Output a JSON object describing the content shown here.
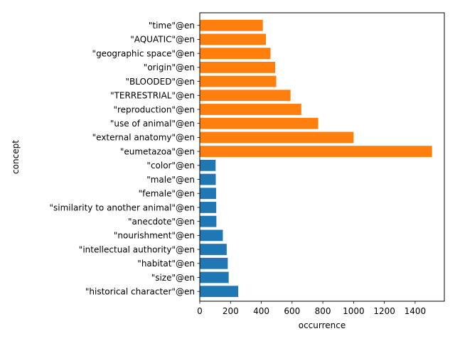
{
  "chart_data": {
    "type": "bar",
    "orientation": "horizontal",
    "title": "",
    "xlabel": "occurrence",
    "ylabel": "concept",
    "xlim": [
      0,
      1590
    ],
    "xticks": [
      0,
      200,
      400,
      600,
      800,
      1000,
      1200,
      1400
    ],
    "grid": false,
    "legend": "none",
    "colors": {
      "blue": "#1f77b4",
      "orange": "#ff7f0e"
    },
    "bars": [
      {
        "label": "\"historical character\"@en",
        "value": 250,
        "color": "#1f77b4"
      },
      {
        "label": "\"size\"@en",
        "value": 188,
        "color": "#1f77b4"
      },
      {
        "label": "\"habitat\"@en",
        "value": 182,
        "color": "#1f77b4"
      },
      {
        "label": "\"intellectual authority\"@en",
        "value": 175,
        "color": "#1f77b4"
      },
      {
        "label": "\"nourishment\"@en",
        "value": 150,
        "color": "#1f77b4"
      },
      {
        "label": "\"anecdote\"@en",
        "value": 108,
        "color": "#1f77b4"
      },
      {
        "label": "\"similarity to another animal\"@en",
        "value": 107,
        "color": "#1f77b4"
      },
      {
        "label": "\"female\"@en",
        "value": 106,
        "color": "#1f77b4"
      },
      {
        "label": "\"male\"@en",
        "value": 104,
        "color": "#1f77b4"
      },
      {
        "label": "\"color\"@en",
        "value": 103,
        "color": "#1f77b4"
      },
      {
        "label": "\"eumetazoa\"@en",
        "value": 1510,
        "color": "#ff7f0e"
      },
      {
        "label": "\"external anatomy\"@en",
        "value": 1000,
        "color": "#ff7f0e"
      },
      {
        "label": "\"use of animal\"@en",
        "value": 770,
        "color": "#ff7f0e"
      },
      {
        "label": "\"reproduction\"@en",
        "value": 660,
        "color": "#ff7f0e"
      },
      {
        "label": "\"TERRESTRIAL\"@en",
        "value": 590,
        "color": "#ff7f0e"
      },
      {
        "label": "\"BLOODED\"@en",
        "value": 497,
        "color": "#ff7f0e"
      },
      {
        "label": "\"origin\"@en",
        "value": 490,
        "color": "#ff7f0e"
      },
      {
        "label": "\"geographic space\"@en",
        "value": 460,
        "color": "#ff7f0e"
      },
      {
        "label": "\"AQUATIC\"@en",
        "value": 430,
        "color": "#ff7f0e"
      },
      {
        "label": "\"time\"@en",
        "value": 410,
        "color": "#ff7f0e"
      }
    ]
  }
}
